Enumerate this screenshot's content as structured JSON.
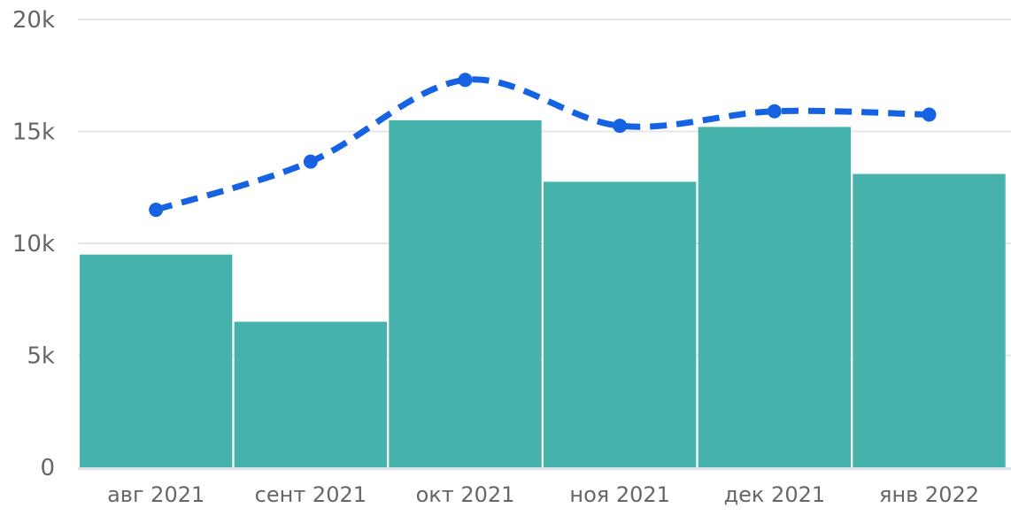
{
  "chart_data": {
    "type": "bar",
    "combo": "bar+line",
    "title": "",
    "xlabel": "",
    "ylabel": "",
    "categories": [
      "авг 2021",
      "сент 2021",
      "окт 2021",
      "ноя 2021",
      "дек 2021",
      "янв 2022"
    ],
    "series": [
      {
        "name": "bars",
        "type": "bar",
        "color": "#45b3ac",
        "values": [
          9500,
          6500,
          15500,
          12750,
          15200,
          13100
        ]
      },
      {
        "name": "trend-line",
        "type": "line",
        "style": "dashed",
        "color": "#1563e2",
        "marker": "circle",
        "values": [
          11500,
          13650,
          17300,
          15250,
          15900,
          15750
        ]
      }
    ],
    "ylim": [
      0,
      20000
    ],
    "yticks": [
      0,
      5000,
      10000,
      15000,
      20000
    ],
    "ytick_labels": [
      "0",
      "5k",
      "10k",
      "15k",
      "20k"
    ],
    "grid": true,
    "legend_position": "none"
  },
  "axis": {
    "text_color": "#666666",
    "grid_color": "#e6e6e6",
    "baseline_color": "#dce3e9",
    "background": "#ffffff"
  }
}
